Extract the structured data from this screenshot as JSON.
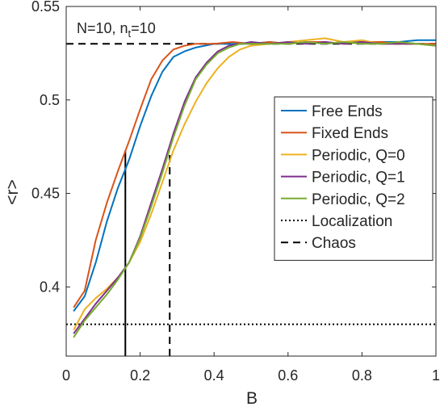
{
  "chart_data": {
    "type": "line",
    "title": "",
    "annotation": {
      "main": "N=10, n",
      "sub": "t",
      "rest": "=10"
    },
    "xlabel": "B",
    "ylabel": "<r>",
    "xlim": [
      0,
      1
    ],
    "ylim": [
      0.363,
      0.55
    ],
    "xticks": [
      0,
      0.2,
      0.4,
      0.6,
      0.8,
      1
    ],
    "xtick_labels": [
      "0",
      "0.2",
      "0.4",
      "0.6",
      "0.8",
      "1"
    ],
    "yticks": [
      0.4,
      0.45,
      0.5,
      0.55
    ],
    "ytick_labels": [
      "0.4",
      "0.45",
      "0.5",
      "0.55"
    ],
    "grid": false,
    "legend_position": "right",
    "series": [
      {
        "name": "Free Ends",
        "color": "#0072BD",
        "x": [
          0.02,
          0.05,
          0.08,
          0.11,
          0.14,
          0.17,
          0.2,
          0.23,
          0.26,
          0.29,
          0.32,
          0.35,
          0.4,
          0.45,
          0.5,
          0.55,
          0.6,
          0.65,
          0.7,
          0.75,
          0.8,
          0.85,
          0.9,
          0.95,
          1.0
        ],
        "y": [
          0.387,
          0.395,
          0.413,
          0.435,
          0.453,
          0.468,
          0.486,
          0.502,
          0.515,
          0.523,
          0.526,
          0.528,
          0.53,
          0.53,
          0.53,
          0.531,
          0.53,
          0.531,
          0.53,
          0.531,
          0.531,
          0.531,
          0.531,
          0.532,
          0.532
        ]
      },
      {
        "name": "Fixed Ends",
        "color": "#D95319",
        "x": [
          0.02,
          0.05,
          0.08,
          0.11,
          0.14,
          0.17,
          0.2,
          0.23,
          0.26,
          0.29,
          0.32,
          0.35,
          0.4,
          0.45,
          0.5,
          0.55,
          0.6,
          0.65,
          0.7,
          0.75,
          0.8,
          0.85,
          0.9,
          0.95,
          1.0
        ],
        "y": [
          0.389,
          0.398,
          0.425,
          0.445,
          0.462,
          0.478,
          0.495,
          0.511,
          0.521,
          0.527,
          0.529,
          0.53,
          0.53,
          0.531,
          0.53,
          0.531,
          0.53,
          0.531,
          0.531,
          0.53,
          0.531,
          0.531,
          0.53,
          0.53,
          0.53
        ]
      },
      {
        "name": "Periodic, Q=0",
        "color": "#EDB120",
        "x": [
          0.02,
          0.05,
          0.08,
          0.11,
          0.14,
          0.17,
          0.2,
          0.23,
          0.26,
          0.29,
          0.32,
          0.35,
          0.38,
          0.41,
          0.44,
          0.47,
          0.5,
          0.55,
          0.6,
          0.65,
          0.7,
          0.75,
          0.8,
          0.85,
          0.9,
          0.95,
          1.0
        ],
        "y": [
          0.377,
          0.388,
          0.394,
          0.399,
          0.405,
          0.413,
          0.424,
          0.439,
          0.456,
          0.473,
          0.487,
          0.499,
          0.509,
          0.517,
          0.523,
          0.527,
          0.529,
          0.53,
          0.531,
          0.532,
          0.533,
          0.531,
          0.532,
          0.53,
          0.53,
          0.53,
          0.529
        ]
      },
      {
        "name": "Periodic, Q=1",
        "color": "#7E2F8E",
        "x": [
          0.02,
          0.05,
          0.08,
          0.11,
          0.14,
          0.17,
          0.2,
          0.23,
          0.26,
          0.29,
          0.32,
          0.35,
          0.38,
          0.41,
          0.44,
          0.47,
          0.5,
          0.55,
          0.6,
          0.65,
          0.7,
          0.75,
          0.8,
          0.85,
          0.9,
          0.95,
          1.0
        ],
        "y": [
          0.375,
          0.383,
          0.391,
          0.398,
          0.405,
          0.413,
          0.427,
          0.445,
          0.463,
          0.482,
          0.499,
          0.512,
          0.52,
          0.526,
          0.529,
          0.53,
          0.531,
          0.53,
          0.531,
          0.53,
          0.531,
          0.53,
          0.531,
          0.53,
          0.53,
          0.53,
          0.529
        ]
      },
      {
        "name": "Periodic, Q=2",
        "color": "#77AC30",
        "x": [
          0.02,
          0.05,
          0.08,
          0.11,
          0.14,
          0.17,
          0.2,
          0.23,
          0.26,
          0.29,
          0.32,
          0.35,
          0.38,
          0.41,
          0.44,
          0.47,
          0.5,
          0.55,
          0.6,
          0.65,
          0.7,
          0.75,
          0.8,
          0.85,
          0.9,
          0.95,
          1.0
        ],
        "y": [
          0.373,
          0.382,
          0.389,
          0.396,
          0.404,
          0.413,
          0.426,
          0.443,
          0.461,
          0.48,
          0.497,
          0.511,
          0.519,
          0.525,
          0.528,
          0.53,
          0.53,
          0.53,
          0.53,
          0.531,
          0.53,
          0.531,
          0.53,
          0.53,
          0.531,
          0.53,
          0.529
        ]
      }
    ],
    "reference_lines": [
      {
        "name": "Localization",
        "orientation": "horizontal",
        "y": 0.38,
        "style": "dotted",
        "color": "#000000"
      },
      {
        "name": "Chaos",
        "orientation": "horizontal",
        "y": 0.53,
        "style": "dashed",
        "color": "#000000"
      }
    ],
    "marker_lines": [
      {
        "x": 0.16,
        "y_top": 0.473,
        "style": "solid",
        "color": "#000000"
      },
      {
        "x": 0.28,
        "y_top": 0.471,
        "style": "dashed",
        "color": "#000000"
      }
    ]
  }
}
